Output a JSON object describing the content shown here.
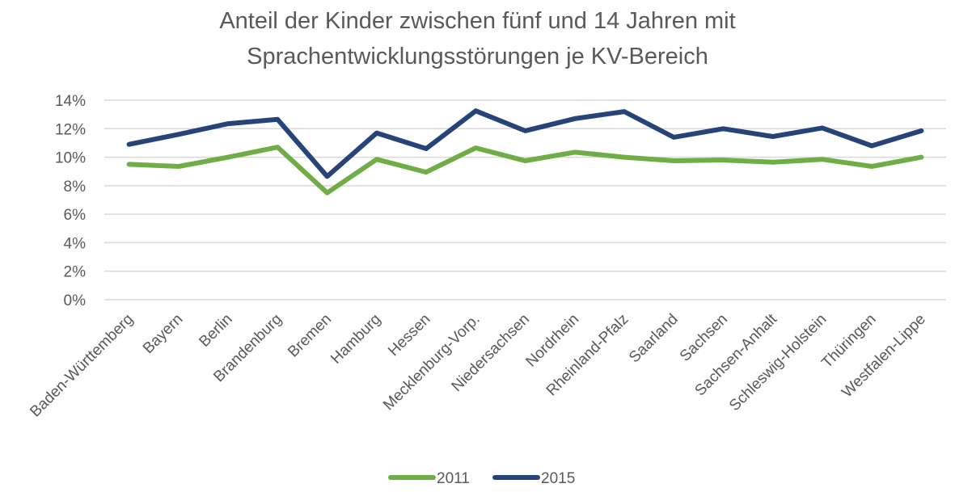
{
  "chart_data": {
    "type": "line",
    "title_line1": "Anteil der Kinder zwischen fünf und 14 Jahren mit",
    "title_line2": "Sprachentwicklungsstörungen je KV-Bereich",
    "xlabel": "",
    "ylabel": "",
    "ylim": [
      0,
      14
    ],
    "yticks": [
      0,
      2,
      4,
      6,
      8,
      10,
      12,
      14
    ],
    "ytick_labels": [
      "0%",
      "2%",
      "4%",
      "6%",
      "8%",
      "10%",
      "12%",
      "14%"
    ],
    "grid": true,
    "legend_position": "bottom",
    "categories": [
      "Baden-Württemberg",
      "Bayern",
      "Berlin",
      "Brandenburg",
      "Bremen",
      "Hamburg",
      "Hessen",
      "Mecklenburg-Vorp.",
      "Niedersachsen",
      "Nordrhein",
      "Rheinland-Pfalz",
      "Saarland",
      "Sachsen",
      "Sachsen-Anhalt",
      "Schleswig-Holstein",
      "Thüringen",
      "Westfalen-Lippe"
    ],
    "series": [
      {
        "name": "2011",
        "color": "#70AD47",
        "values": [
          9.5,
          9.35,
          10.0,
          10.7,
          7.5,
          9.85,
          8.95,
          10.65,
          9.75,
          10.35,
          10.0,
          9.75,
          9.8,
          9.65,
          9.85,
          9.35,
          10.0
        ]
      },
      {
        "name": "2015",
        "color": "#264478",
        "values": [
          10.9,
          11.6,
          12.35,
          12.65,
          8.65,
          11.7,
          10.6,
          13.25,
          11.85,
          12.7,
          13.2,
          11.4,
          12.0,
          11.45,
          12.05,
          10.8,
          11.85
        ]
      }
    ],
    "colors": {
      "text": "#595959",
      "grid": "#D9D9D9"
    }
  }
}
